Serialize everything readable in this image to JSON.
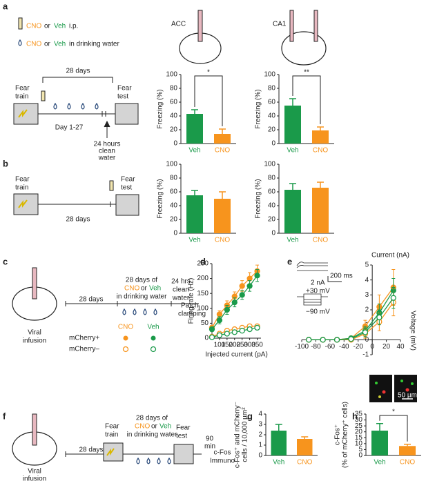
{
  "schematic": {
    "letters": [
      "a",
      "b",
      "c",
      "d",
      "e",
      "f",
      "g",
      "h"
    ],
    "cno": "CNO",
    "or": "or",
    "veh": "Veh",
    "ip": "i.p.",
    "drinking": "in drinking water",
    "days28": "28 days",
    "fear_train": [
      "Fear",
      "train"
    ],
    "fear_test": [
      "Fear",
      "test"
    ],
    "day127": "Day 1-27",
    "clean24": [
      "24 hours",
      "clean",
      "water"
    ],
    "viral": [
      "Viral",
      "infusion"
    ],
    "days_of": "28 days of",
    "clean_hrs": [
      "24 hrs",
      "clean",
      "water"
    ],
    "patch": [
      "Patch",
      "clamping"
    ],
    "mch_pos": "mCherry+",
    "mch_neg": "mCherry–",
    "min90": [
      "90",
      "min"
    ],
    "cfos": [
      "c-Fos",
      "Immuno"
    ],
    "inset": [
      "200 ms",
      "2 nA",
      "+30 mV",
      "−90 mV"
    ],
    "scale": "50 µm"
  },
  "chart_data": [
    {
      "type": "bar",
      "title": "ACC",
      "categories": [
        "Veh",
        "CNO"
      ],
      "values": [
        43,
        14
      ],
      "errors": [
        6,
        7
      ],
      "colors": [
        "#1a9a4a",
        "#f7941d"
      ],
      "ylabel": "Freezing (%)",
      "ylim": [
        0,
        100
      ],
      "yticks": [
        0,
        20,
        40,
        60,
        80,
        100
      ],
      "annotation": "*"
    },
    {
      "type": "bar",
      "title": "CA1",
      "categories": [
        "Veh",
        "CNO"
      ],
      "values": [
        55,
        19
      ],
      "errors": [
        10,
        5
      ],
      "colors": [
        "#1a9a4a",
        "#f7941d"
      ],
      "ylabel": "Freezing (%)",
      "ylim": [
        0,
        100
      ],
      "yticks": [
        0,
        20,
        40,
        60,
        80,
        100
      ],
      "annotation": "**"
    },
    {
      "type": "bar",
      "categories": [
        "Veh",
        "CNO"
      ],
      "values": [
        55,
        50
      ],
      "errors": [
        7,
        10
      ],
      "colors": [
        "#1a9a4a",
        "#f7941d"
      ],
      "ylabel": "Freezing (%)",
      "ylim": [
        0,
        100
      ],
      "yticks": [
        0,
        20,
        40,
        60,
        80,
        100
      ]
    },
    {
      "type": "bar",
      "categories": [
        "Veh",
        "CNO"
      ],
      "values": [
        63,
        66
      ],
      "errors": [
        9,
        8
      ],
      "colors": [
        "#1a9a4a",
        "#f7941d"
      ],
      "ylabel": "Freezing (%)",
      "ylim": [
        0,
        100
      ],
      "yticks": [
        0,
        20,
        40,
        60,
        80,
        100
      ]
    },
    {
      "type": "line",
      "xlabel": "Injected current (pA)",
      "ylabel": "Firing rate (Hz)",
      "x": [
        50,
        100,
        150,
        200,
        250,
        300,
        350
      ],
      "xlim": [
        50,
        375
      ],
      "xticks": [
        100,
        150,
        200,
        250,
        300,
        350
      ],
      "ylim": [
        0,
        250
      ],
      "yticks": [
        0,
        50,
        100,
        150,
        200,
        250
      ],
      "series": [
        {
          "color": "#f7941d",
          "filled": true,
          "values": [
            35,
            80,
            110,
            140,
            175,
            200,
            225
          ],
          "errors": [
            8,
            12,
            15,
            15,
            18,
            20,
            20
          ]
        },
        {
          "color": "#1a9a4a",
          "filled": true,
          "values": [
            30,
            60,
            95,
            120,
            145,
            175,
            210
          ],
          "errors": [
            8,
            12,
            15,
            15,
            15,
            18,
            20
          ]
        },
        {
          "color": "#f7941d",
          "filled": false,
          "values": [
            5,
            15,
            25,
            30,
            35,
            40,
            40
          ],
          "errors": [
            3,
            4,
            5,
            5,
            5,
            6,
            6
          ]
        },
        {
          "color": "#1a9a4a",
          "filled": false,
          "values": [
            3,
            10,
            15,
            20,
            25,
            30,
            35
          ],
          "errors": [
            2,
            3,
            4,
            4,
            5,
            5,
            6
          ]
        }
      ]
    },
    {
      "type": "line",
      "title": "Current (nA)",
      "xlabel": "Voltage (mV)",
      "x": [
        -90,
        -70,
        -50,
        -30,
        -10,
        10,
        30
      ],
      "xlim": [
        -100,
        40
      ],
      "xticks": [
        -100,
        -80,
        -60,
        -40,
        -20,
        0,
        20,
        40
      ],
      "ylim": [
        -1,
        5
      ],
      "yticks": [
        -1,
        0,
        1,
        2,
        3,
        4,
        5
      ],
      "series": [
        {
          "color": "#f7941d",
          "filled": true,
          "values": [
            0,
            0,
            0,
            0.1,
            0.9,
            2.2,
            3.5
          ],
          "errors": [
            0,
            0,
            0,
            0.1,
            0.4,
            0.8,
            1.2
          ]
        },
        {
          "color": "#1a9a4a",
          "filled": true,
          "values": [
            0,
            0,
            0,
            0.1,
            0.6,
            1.8,
            3.3
          ],
          "errors": [
            0,
            0,
            0,
            0.1,
            0.3,
            0.6,
            0.8
          ]
        },
        {
          "color": "#f7941d",
          "filled": false,
          "values": [
            0,
            0,
            0,
            0,
            0.4,
            1.2,
            2.5
          ],
          "errors": [
            0,
            0,
            0,
            0.1,
            0.3,
            0.6,
            0.9
          ]
        },
        {
          "color": "#1a9a4a",
          "filled": false,
          "values": [
            0,
            0,
            0,
            0.05,
            0.5,
            1.5,
            2.8
          ],
          "errors": [
            0,
            0,
            0,
            0.1,
            0.3,
            0.5,
            0.7
          ]
        }
      ]
    },
    {
      "type": "bar",
      "categories": [
        "Veh",
        "CNO"
      ],
      "values": [
        2.4,
        1.6
      ],
      "errors": [
        0.6,
        0.2
      ],
      "colors": [
        "#1a9a4a",
        "#f7941d"
      ],
      "ylabel": [
        "c-Fos⁺ and mCherry⁻",
        "cells / 10,000 µm²"
      ],
      "ylim": [
        0,
        4
      ],
      "yticks": [
        0,
        1,
        2,
        3,
        4
      ]
    },
    {
      "type": "bar",
      "categories": [
        "Veh",
        "CNO"
      ],
      "values": [
        21,
        8
      ],
      "errors": [
        6,
        1.5
      ],
      "colors": [
        "#1a9a4a",
        "#f7941d"
      ],
      "ylabel": [
        "c-Fos⁺",
        "(% of mCherry⁺ cells)"
      ],
      "ylim": [
        0,
        35
      ],
      "yticks": [
        0,
        5,
        10,
        15,
        20,
        25,
        30,
        35
      ],
      "annotation": "*"
    }
  ]
}
